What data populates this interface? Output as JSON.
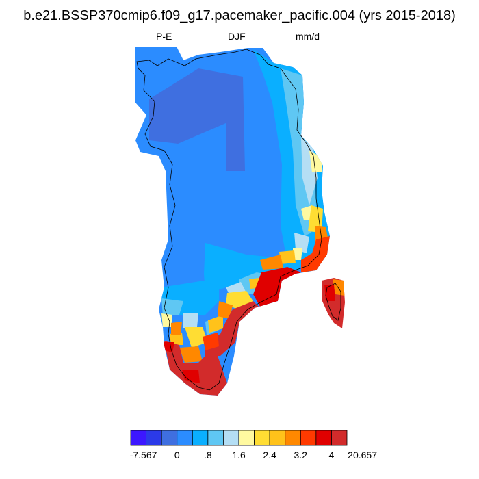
{
  "title": "b.e21.BSSP370cmip6.f09_g17.pacemaker_pacific.004 (yrs 2015-2018)",
  "subtitles": {
    "left": "P-E",
    "center": "DJF",
    "right": "mm/d"
  },
  "colorbar": {
    "colors": [
      "#3c17ff",
      "#2b3ae8",
      "#3f6fe0",
      "#2b8cff",
      "#0aafff",
      "#5fc7f3",
      "#b4def4",
      "#fff9a0",
      "#ffdd33",
      "#ffc21a",
      "#ff8800",
      "#ff3a00",
      "#e00000",
      "#d22b2b"
    ],
    "labels": [
      "-7.567",
      "0",
      ".8",
      "1.6",
      "2.4",
      "3.2",
      "4",
      "20.657"
    ]
  },
  "chart_data": {
    "type": "heatmap",
    "region": "Greenland",
    "variable": "P-E",
    "season": "DJF",
    "units": "mm/d",
    "range": [
      -7.567,
      20.657
    ],
    "levels": [
      -7.567,
      0,
      0.8,
      1.6,
      2.4,
      3.2,
      4,
      20.657
    ]
  }
}
